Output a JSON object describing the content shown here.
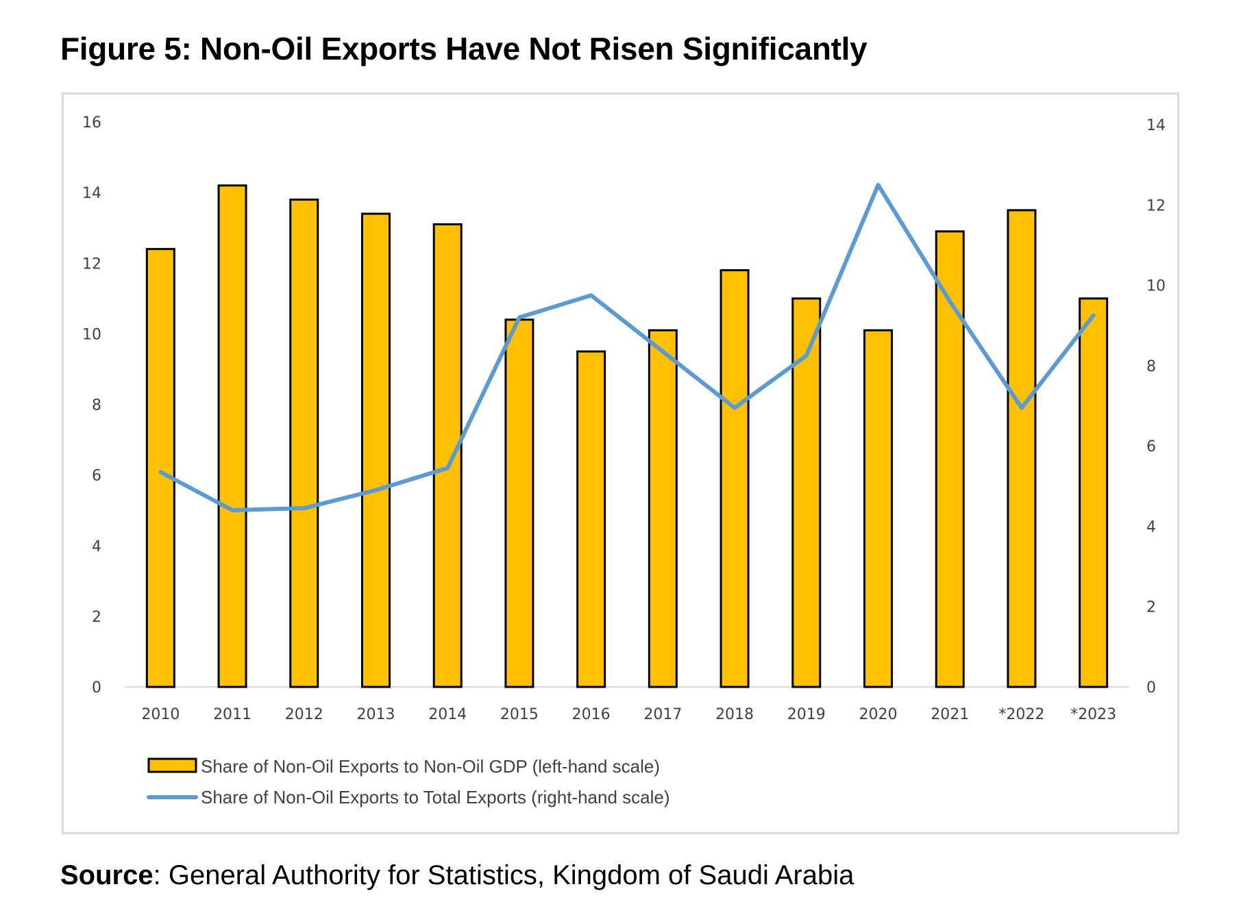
{
  "title": "Figure 5: Non-Oil Exports Have Not Risen Significantly",
  "source": {
    "label": "Source",
    "text": ": General Authority for Statistics, Kingdom of Saudi Arabia"
  },
  "colors": {
    "bar": "#FFC000",
    "bar_stroke": "#000000",
    "line": "#5B9BD5",
    "axis": "#d9d9d9",
    "tick_text": "#404040"
  },
  "chart_data": {
    "type": "bar",
    "categories": [
      "2010",
      "2011",
      "2012",
      "2013",
      "2014",
      "2015",
      "2016",
      "2017",
      "2018",
      "2019",
      "2020",
      "2021",
      "*2022",
      "*2023"
    ],
    "series": [
      {
        "name": "Share of Non-Oil Exports to Non-Oil GDP (left-hand scale)",
        "type": "bar",
        "axis": "left",
        "values": [
          12.4,
          14.2,
          13.8,
          13.4,
          13.1,
          10.4,
          9.5,
          10.1,
          11.8,
          11.0,
          10.1,
          12.9,
          13.5,
          11.0
        ]
      },
      {
        "name": "Share of Non-Oil Exports to Total Exports (right-hand scale)",
        "type": "line",
        "axis": "right",
        "values": [
          5.35,
          4.4,
          4.45,
          4.9,
          5.45,
          9.2,
          9.75,
          8.35,
          6.95,
          8.25,
          12.5,
          9.6,
          6.95,
          9.25
        ]
      }
    ],
    "y_left": {
      "ylim": [
        0,
        16
      ],
      "ticks": [
        "0",
        "2",
        "4",
        "6",
        "8",
        "10",
        "12",
        "14",
        "16"
      ]
    },
    "y_right": {
      "ylim": [
        0,
        14
      ],
      "ticks": [
        "0",
        "2",
        "4",
        "6",
        "8",
        "10",
        "12",
        "14"
      ]
    },
    "grid": false,
    "legend": "bottom-left"
  }
}
